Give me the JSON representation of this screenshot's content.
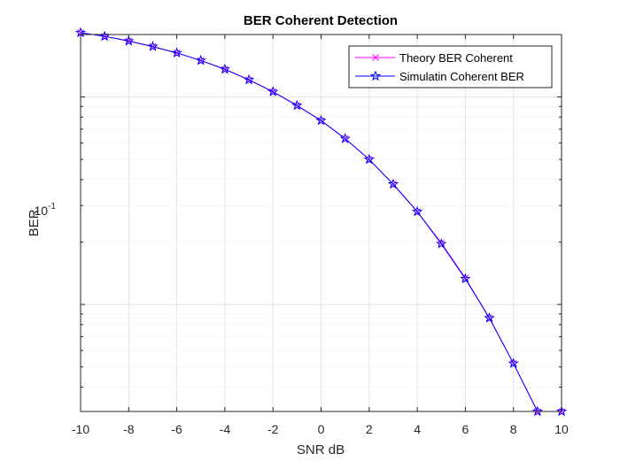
{
  "chart_data": {
    "type": "line",
    "title": "BER Coherent Detection",
    "xlabel": "SNR dB",
    "ylabel": "BER",
    "xlim": [
      -10,
      10
    ],
    "ylim": [
      0.00305,
      0.2
    ],
    "yscale": "log",
    "grid": true,
    "legend_position": "top-right",
    "x": [
      -10,
      -9,
      -8,
      -7,
      -6,
      -5,
      -4,
      -3,
      -2,
      -1,
      0,
      1,
      2,
      3,
      4,
      5,
      6,
      7,
      8,
      9,
      10
    ],
    "xticks": [
      "-10",
      "-8",
      "-6",
      "-4",
      "-2",
      "0",
      "2",
      "4",
      "6",
      "8",
      "10"
    ],
    "ytick_label": {
      "base": "10",
      "exp": "-1"
    },
    "series": [
      {
        "name": "Theory BER Coherent",
        "color": "#ff00ff",
        "marker": "x",
        "values": [
          0.204,
          0.196,
          0.186,
          0.175,
          0.163,
          0.15,
          0.136,
          0.121,
          0.106,
          0.091,
          0.077,
          0.063,
          0.05,
          0.038,
          0.028,
          0.0198,
          0.0134,
          0.0086,
          0.0052,
          0.003,
          0.0017
        ]
      },
      {
        "name": "Simulatin Coherent BER",
        "color": "#0000ff",
        "marker": "pentagram",
        "values": [
          0.204,
          0.196,
          0.186,
          0.175,
          0.163,
          0.15,
          0.136,
          0.121,
          0.106,
          0.091,
          0.077,
          0.063,
          0.05,
          0.038,
          0.028,
          0.0196,
          0.0133,
          0.0086,
          0.0052,
          0.003,
          0.0017
        ]
      }
    ]
  }
}
